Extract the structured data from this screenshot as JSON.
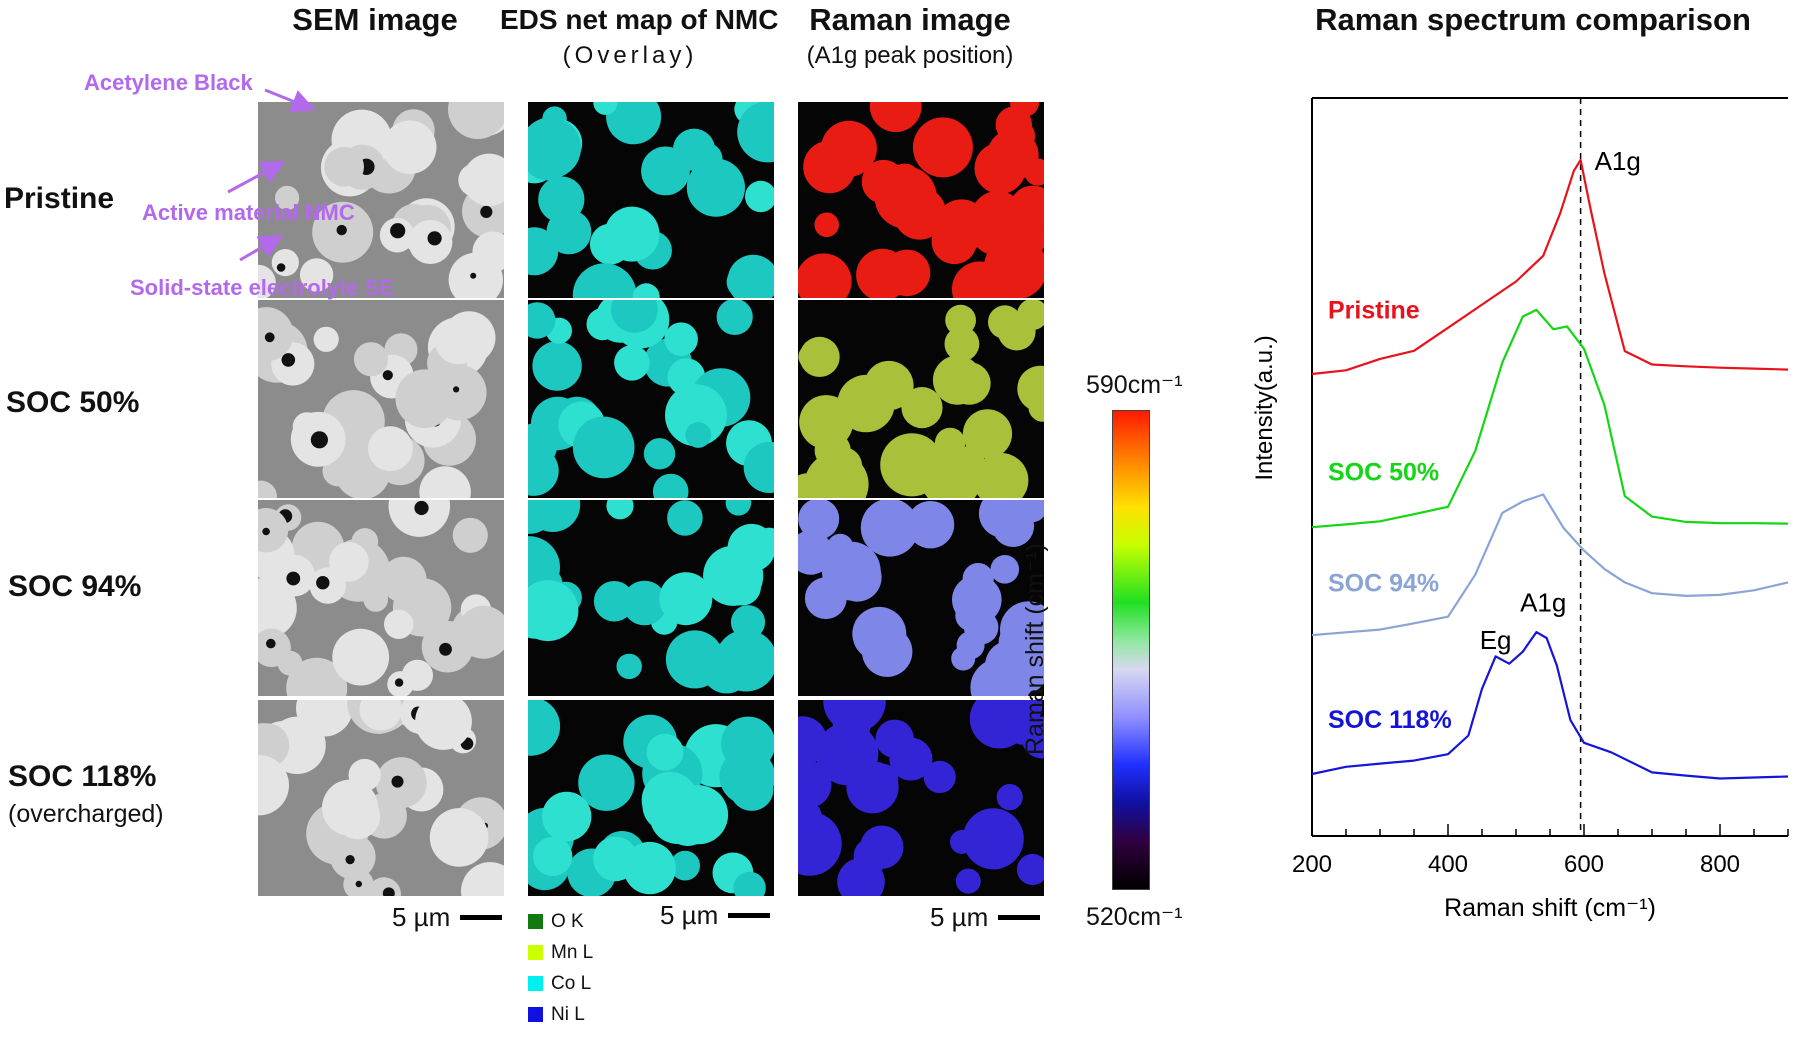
{
  "columns": {
    "sem": {
      "title": "SEM image"
    },
    "eds": {
      "title": "EDS net map of NMC",
      "subtitle": "(Overlay)"
    },
    "raman": {
      "title": "Raman image",
      "subtitle": "(A1g peak position)"
    }
  },
  "rows": [
    {
      "label": "Pristine",
      "sub": ""
    },
    {
      "label": "SOC 50%",
      "sub": ""
    },
    {
      "label": "SOC 94%",
      "sub": ""
    },
    {
      "label": "SOC 118%",
      "sub": "(overcharged)"
    }
  ],
  "annotations": {
    "acetylene": "Acetylene Black",
    "nmc": "Active material NMC",
    "se": "Solid-state electrolyte SE"
  },
  "scalebar": "5 µm",
  "eds_legend": [
    {
      "label": "O  K",
      "color": "#137a13"
    },
    {
      "label": "Mn L",
      "color": "#ccff00"
    },
    {
      "label": "Co L",
      "color": "#00f0f0"
    },
    {
      "label": "Ni  L",
      "color": "#1010e0"
    }
  ],
  "colorbar": {
    "top_label": "590cm⁻¹",
    "bottom_label": "520cm⁻¹",
    "axis_label": "Raman shift (cm⁻¹)"
  },
  "raman_map_colors": [
    "#e81c12",
    "#a8c03a",
    "#7e86e8",
    "#3325d6"
  ],
  "chart_data": {
    "type": "line",
    "title": "Raman spectrum comparison",
    "xlabel": "Raman shift (cm⁻¹)",
    "ylabel": "Intensity(a.u.)",
    "xlim": [
      200,
      900
    ],
    "x_ticks": [
      200,
      400,
      600,
      800
    ],
    "reference_line_x": 595,
    "reference_label": "A1g",
    "peak_labels": [
      {
        "text": "A1g",
        "x": 540
      },
      {
        "text": "Eg",
        "x": 470
      }
    ],
    "series": [
      {
        "name": "Pristine",
        "color": "#e8121b",
        "x": [
          200,
          250,
          300,
          350,
          400,
          450,
          500,
          540,
          565,
          585,
          595,
          610,
          630,
          660,
          700,
          750,
          800,
          850,
          900
        ],
        "y": [
          0.63,
          0.635,
          0.65,
          0.66,
          0.69,
          0.72,
          0.75,
          0.79,
          0.84,
          0.9,
          0.915,
          0.85,
          0.76,
          0.66,
          0.635,
          0.633,
          0.632,
          0.632,
          0.632
        ]
      },
      {
        "name": "SOC 50%",
        "color": "#14d614",
        "x": [
          200,
          250,
          300,
          350,
          400,
          440,
          480,
          510,
          530,
          555,
          575,
          600,
          630,
          660,
          700,
          750,
          800,
          850,
          900
        ],
        "y": [
          0.42,
          0.425,
          0.43,
          0.44,
          0.45,
          0.52,
          0.64,
          0.7,
          0.71,
          0.69,
          0.69,
          0.66,
          0.58,
          0.46,
          0.43,
          0.422,
          0.42,
          0.42,
          0.42
        ]
      },
      {
        "name": "SOC 94%",
        "color": "#8aa4d6",
        "x": [
          200,
          250,
          300,
          350,
          400,
          440,
          480,
          510,
          540,
          570,
          600,
          630,
          660,
          700,
          750,
          800,
          850,
          900
        ],
        "y": [
          0.27,
          0.275,
          0.28,
          0.29,
          0.3,
          0.35,
          0.44,
          0.45,
          0.46,
          0.42,
          0.39,
          0.36,
          0.34,
          0.33,
          0.325,
          0.325,
          0.33,
          0.34
        ]
      },
      {
        "name": "SOC 118%",
        "color": "#1515d9",
        "x": [
          200,
          250,
          300,
          350,
          400,
          430,
          450,
          470,
          490,
          510,
          530,
          545,
          560,
          580,
          600,
          640,
          700,
          750,
          800,
          850,
          900
        ],
        "y": [
          0.08,
          0.09,
          0.095,
          0.1,
          0.11,
          0.14,
          0.2,
          0.24,
          0.23,
          0.25,
          0.28,
          0.27,
          0.23,
          0.16,
          0.13,
          0.11,
          0.09,
          0.085,
          0.08,
          0.08,
          0.08
        ]
      }
    ]
  }
}
